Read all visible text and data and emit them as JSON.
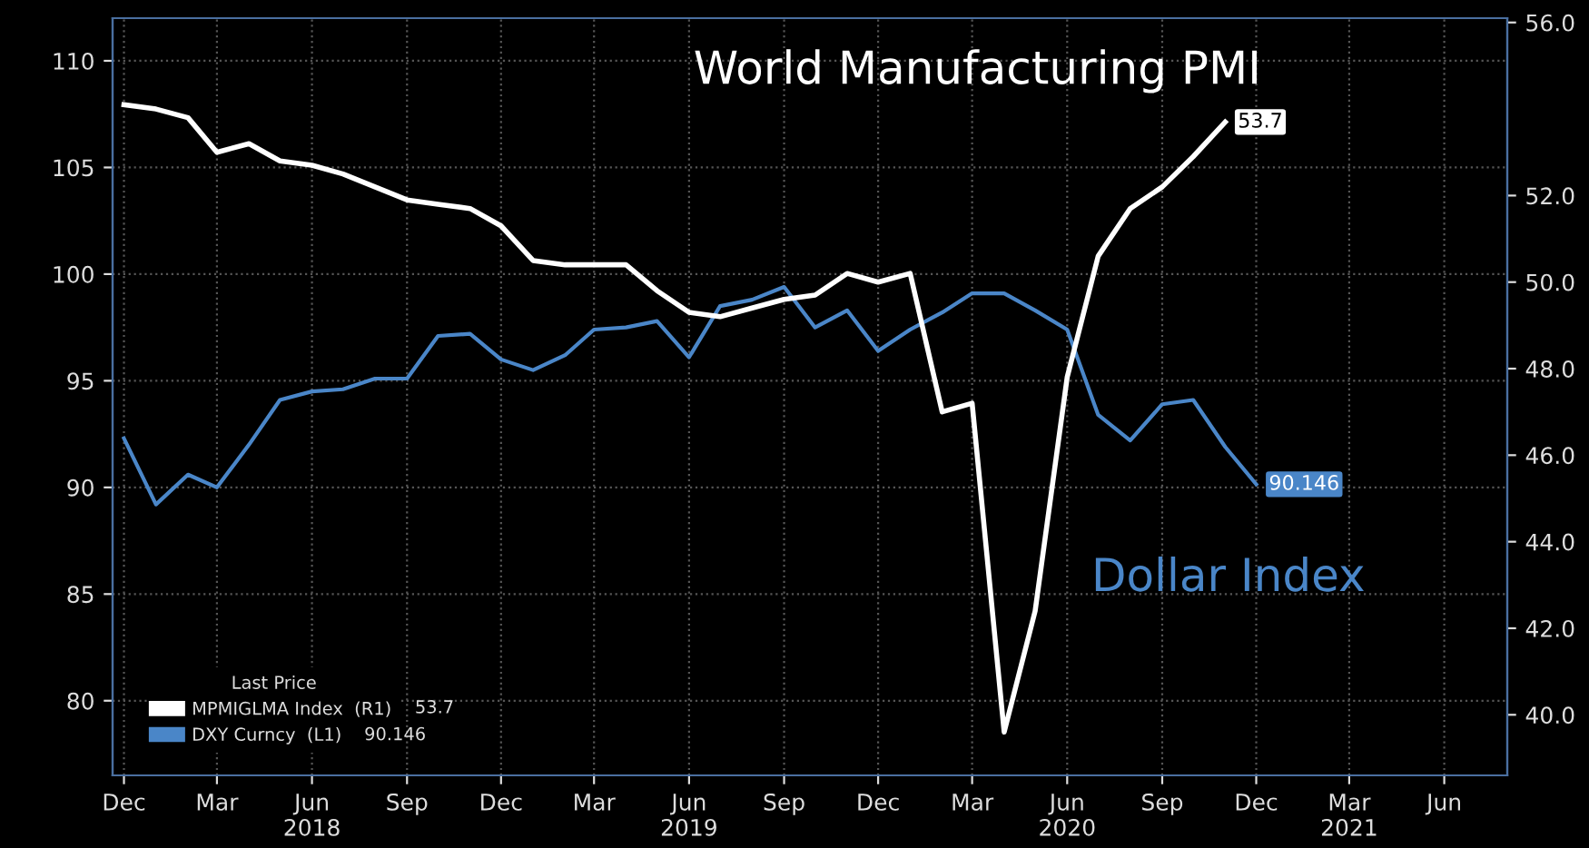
{
  "chart_data": {
    "type": "line",
    "x": [
      "2017-12",
      "2018-01",
      "2018-02",
      "2018-03",
      "2018-04",
      "2018-05",
      "2018-06",
      "2018-07",
      "2018-08",
      "2018-09",
      "2018-10",
      "2018-11",
      "2018-12",
      "2019-01",
      "2019-02",
      "2019-03",
      "2019-04",
      "2019-05",
      "2019-06",
      "2019-07",
      "2019-08",
      "2019-09",
      "2019-10",
      "2019-11",
      "2019-12",
      "2020-01",
      "2020-02",
      "2020-03",
      "2020-04",
      "2020-05",
      "2020-06",
      "2020-07",
      "2020-08",
      "2020-09",
      "2020-10",
      "2020-11",
      "2020-12"
    ],
    "series": [
      {
        "name": "MPMIGLMA Index  (R1)",
        "color": "#ffffff",
        "axis": "y2",
        "values": [
          54.1,
          54.0,
          53.8,
          53.0,
          53.2,
          52.8,
          52.7,
          52.5,
          52.2,
          51.9,
          51.8,
          51.7,
          51.3,
          50.5,
          50.4,
          50.4,
          50.4,
          49.8,
          49.3,
          49.2,
          49.4,
          49.6,
          49.7,
          50.2,
          50.0,
          50.2,
          47.0,
          47.2,
          39.6,
          42.4,
          47.8,
          50.6,
          51.7,
          52.2,
          52.9,
          53.7,
          null
        ],
        "value_labels": [
          null,
          null,
          null,
          null,
          null,
          null,
          null,
          null,
          null,
          null,
          null,
          null,
          null,
          null,
          null,
          null,
          null,
          null,
          null,
          null,
          null,
          null,
          null,
          null,
          null,
          null,
          null,
          null,
          null,
          null,
          null,
          null,
          null,
          null,
          null,
          "53.7",
          null
        ]
      },
      {
        "name": "DXY Curncy  (L1)",
        "color": "#4a86c8",
        "axis": "y",
        "values": [
          92.3,
          89.2,
          90.6,
          90.0,
          92.0,
          94.1,
          94.5,
          94.6,
          95.1,
          95.1,
          97.1,
          97.2,
          96.0,
          95.5,
          96.2,
          97.4,
          97.5,
          97.8,
          96.1,
          98.5,
          98.8,
          99.4,
          97.5,
          98.3,
          96.4,
          97.4,
          98.2,
          99.1,
          99.1,
          98.3,
          97.4,
          93.4,
          92.2,
          93.9,
          94.1,
          91.9,
          90.146
        ],
        "value_labels": [
          null,
          null,
          null,
          null,
          null,
          null,
          null,
          null,
          null,
          null,
          null,
          null,
          null,
          null,
          null,
          null,
          null,
          null,
          null,
          null,
          null,
          null,
          null,
          null,
          null,
          null,
          null,
          null,
          null,
          null,
          null,
          null,
          null,
          null,
          null,
          null,
          "90.146"
        ]
      }
    ],
    "xlim": [
      "2017-11-20",
      "2021-08-01"
    ],
    "xticks": [
      {
        "value": "2017-12",
        "label": "Dec"
      },
      {
        "value": "2018-03",
        "label": "Mar"
      },
      {
        "value": "2018-06",
        "label": "Jun\n2018"
      },
      {
        "value": "2018-09",
        "label": "Sep"
      },
      {
        "value": "2018-12",
        "label": "Dec"
      },
      {
        "value": "2019-03",
        "label": "Mar"
      },
      {
        "value": "2019-06",
        "label": "Jun\n2019"
      },
      {
        "value": "2019-09",
        "label": "Sep"
      },
      {
        "value": "2019-12",
        "label": "Dec"
      },
      {
        "value": "2020-03",
        "label": "Mar"
      },
      {
        "value": "2020-06",
        "label": "Jun\n2020"
      },
      {
        "value": "2020-09",
        "label": "Sep"
      },
      {
        "value": "2020-12",
        "label": "Dec"
      },
      {
        "value": "2021-03",
        "label": "Mar\n2021"
      },
      {
        "value": "2021-06",
        "label": "Jun"
      }
    ],
    "ylim": [
      76.5,
      112.0
    ],
    "yticks": [
      80,
      85,
      90,
      95,
      100,
      105,
      110
    ],
    "y2lim": [
      38.6,
      56.1
    ],
    "y2ticks": [
      {
        "value": 40,
        "label": "40.0"
      },
      {
        "value": 42,
        "label": "42.0"
      },
      {
        "value": 44,
        "label": "44.0"
      },
      {
        "value": 46,
        "label": "46.0"
      },
      {
        "value": 48,
        "label": "48.0"
      },
      {
        "value": 50,
        "label": "50.0"
      },
      {
        "value": 52,
        "label": "52.0"
      },
      {
        "value": 56,
        "label": "56.0"
      }
    ],
    "annotations": [
      "World Manufacturing PMI",
      "Dollar Index"
    ],
    "legend": "bottom left",
    "legend_title": "Last Price",
    "grid": true,
    "line_style": "solid",
    "marker": "none"
  }
}
